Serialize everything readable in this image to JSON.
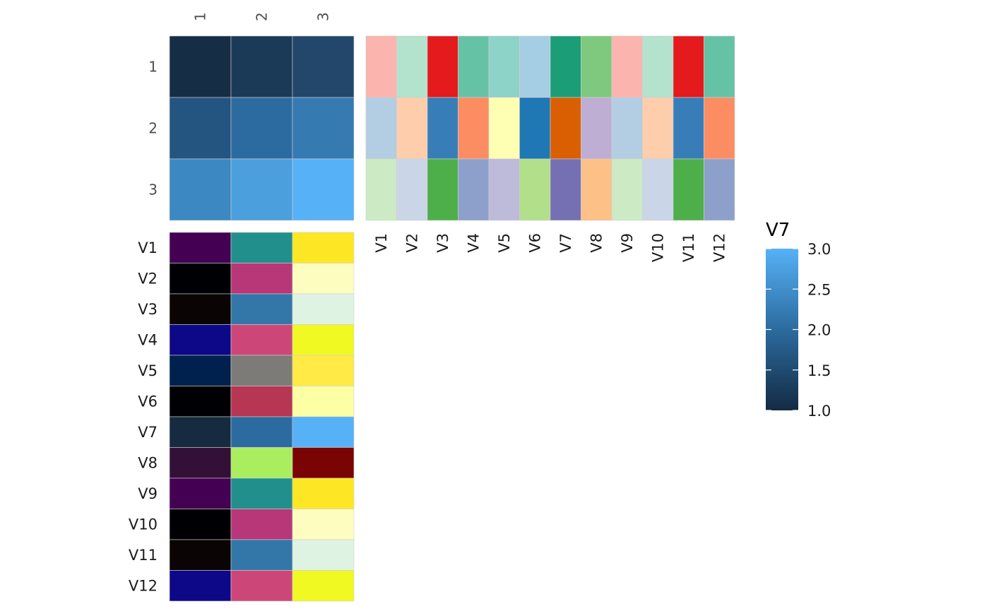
{
  "chart_data": [
    {
      "type": "heatmap",
      "panel": "top-left",
      "columns": [
        "1",
        "2",
        "3"
      ],
      "rows": [
        "1",
        "2",
        "3"
      ],
      "values": [
        [
          1.0,
          1.25,
          1.5
        ],
        [
          1.75,
          2.0,
          2.25
        ],
        [
          2.5,
          2.75,
          3.0
        ]
      ],
      "colors": [
        [
          "#162d46",
          "#1b3a57",
          "#22476a"
        ],
        [
          "#245580",
          "#2c6b9f",
          "#357bb2"
        ],
        [
          "#3c88c2",
          "#4b9fdc",
          "#56b1f7"
        ]
      ]
    },
    {
      "type": "heatmap",
      "panel": "top-right",
      "columns": [
        "V1",
        "V2",
        "V3",
        "V4",
        "V5",
        "V6",
        "V7",
        "V8",
        "V9",
        "V10",
        "V11",
        "V12"
      ],
      "rows": [
        "1",
        "2",
        "3"
      ],
      "colors": [
        [
          "#fbb4ae",
          "#b3e2cd",
          "#e41a1c",
          "#66c2a5",
          "#8dd3c7",
          "#a6cee3",
          "#1b9e77",
          "#7fc97f",
          "#fbb4ae",
          "#b3e2cd",
          "#e41a1c",
          "#66c2a5"
        ],
        [
          "#b3cde3",
          "#fdcdac",
          "#377eb8",
          "#fc8d62",
          "#ffffb3",
          "#1f78b4",
          "#d95f02",
          "#beaed4",
          "#b3cde3",
          "#fdcdac",
          "#377eb8",
          "#fc8d62"
        ],
        [
          "#ccebc5",
          "#cbd5e8",
          "#4daf4a",
          "#8da0cb",
          "#bebada",
          "#b2df8a",
          "#7570b3",
          "#fdc086",
          "#ccebc5",
          "#cbd5e8",
          "#4daf4a",
          "#8da0cb"
        ]
      ]
    },
    {
      "type": "heatmap",
      "panel": "bottom-left",
      "columns": [
        "1",
        "2",
        "3"
      ],
      "rows": [
        "V1",
        "V2",
        "V3",
        "V4",
        "V5",
        "V6",
        "V7",
        "V8",
        "V9",
        "V10",
        "V11",
        "V12"
      ],
      "colors": [
        [
          "#440154",
          "#21908c",
          "#fde725"
        ],
        [
          "#000004",
          "#b73779",
          "#fcfdbf"
        ],
        [
          "#0a0404",
          "#3377a9",
          "#dff3e3"
        ],
        [
          "#0d0887",
          "#cc4778",
          "#f0f921"
        ],
        [
          "#00204d",
          "#7c7b78",
          "#ffea46"
        ],
        [
          "#000004",
          "#b73653",
          "#fcffa4"
        ],
        [
          "#162b40",
          "#2c6b9f",
          "#56b1f7"
        ],
        [
          "#331038",
          "#aaee5f",
          "#7a0403"
        ],
        [
          "#440154",
          "#21908c",
          "#fde725"
        ],
        [
          "#000004",
          "#b73779",
          "#fcfdbf"
        ],
        [
          "#0a0404",
          "#3377a9",
          "#dff3e3"
        ],
        [
          "#0d0887",
          "#cc4778",
          "#f0f921"
        ]
      ]
    }
  ],
  "legend": {
    "title": "V7",
    "min": 1.0,
    "max": 3.0,
    "breaks": [
      3.0,
      2.5,
      2.0,
      1.5,
      1.0
    ],
    "break_labels": [
      "3.0",
      "2.5",
      "2.0",
      "1.5",
      "1.0"
    ],
    "low_color": "#132b43",
    "high_color": "#56b1f7"
  }
}
